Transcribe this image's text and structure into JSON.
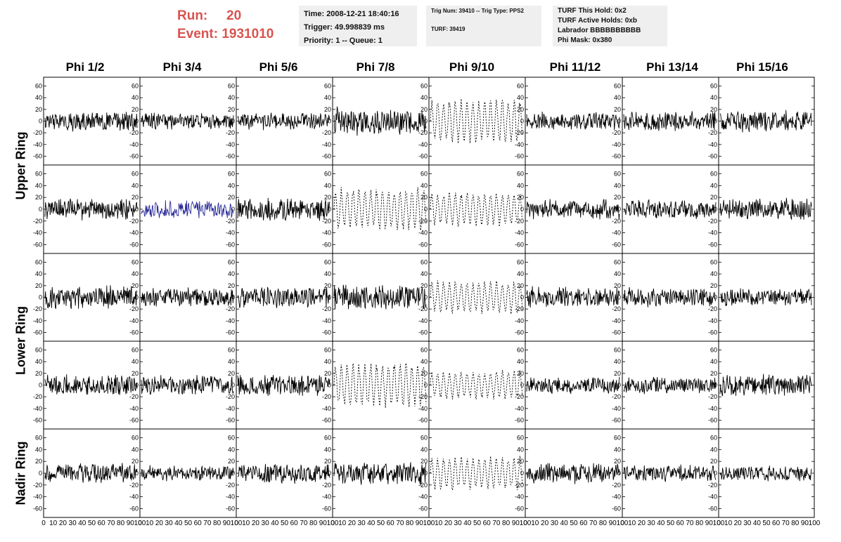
{
  "header": {
    "run_label": "Run:",
    "run_value": "20",
    "event_label": "Event:",
    "event_value": "1931010",
    "info1": [
      "Time: 2008-12-21 18:40:16",
      "Trigger: 49.998839 ms",
      "Priority: 1 -- Queue: 1"
    ],
    "info2": [
      "Trig Num: 39410 -- Trig Type: PPS2",
      "TURF: 39419"
    ],
    "info3": [
      "TURF This Hold: 0x2",
      "TURF Active Holds: 0xb",
      "Labrador BBBBBBBBBB",
      "Phi Mask: 0x380"
    ]
  },
  "colors": {
    "header_red": "#d9534f",
    "trace_default": "#000000",
    "trace_highlight": "#2a2a9a",
    "info_bg": "#efefef"
  },
  "chart_data": {
    "type": "line",
    "columns": [
      "Phi 1/2",
      "Phi 3/4",
      "Phi 5/6",
      "Phi 7/8",
      "Phi 9/10",
      "Phi 11/12",
      "Phi 13/14",
      "Phi 15/16"
    ],
    "rows": [
      "Upper Ring",
      "Upper Ring",
      "Lower Ring",
      "Lower Ring",
      "Nadir Ring"
    ],
    "row_labels": [
      {
        "text": "Upper Ring",
        "spans_rows": [
          0,
          1
        ]
      },
      {
        "text": "Lower Ring",
        "spans_rows": [
          2,
          3
        ]
      },
      {
        "text": "Nadir Ring",
        "spans_rows": [
          4
        ]
      }
    ],
    "y_ticks": [
      -60,
      -40,
      -20,
      0,
      20,
      40,
      60
    ],
    "x_tick_labels": [
      "0",
      "10",
      "20",
      "30",
      "40",
      "50",
      "60",
      "70",
      "80",
      "90",
      "100"
    ],
    "ylim": [
      -75,
      75
    ],
    "xlim": [
      0,
      100
    ],
    "dashed_panels": [
      [
        0,
        4
      ],
      [
        1,
        3
      ],
      [
        1,
        4
      ],
      [
        2,
        4
      ],
      [
        3,
        3
      ],
      [
        3,
        4
      ],
      [
        4,
        4
      ]
    ],
    "highlight_panels": [
      [
        1,
        1
      ]
    ],
    "panel_amplitude": [
      [
        18,
        16,
        16,
        26,
        40,
        18,
        18,
        20
      ],
      [
        20,
        16,
        22,
        38,
        30,
        18,
        18,
        20
      ],
      [
        22,
        18,
        20,
        24,
        30,
        20,
        18,
        16
      ],
      [
        20,
        18,
        20,
        40,
        26,
        16,
        16,
        20
      ],
      [
        18,
        14,
        18,
        22,
        30,
        20,
        16,
        14
      ]
    ]
  }
}
